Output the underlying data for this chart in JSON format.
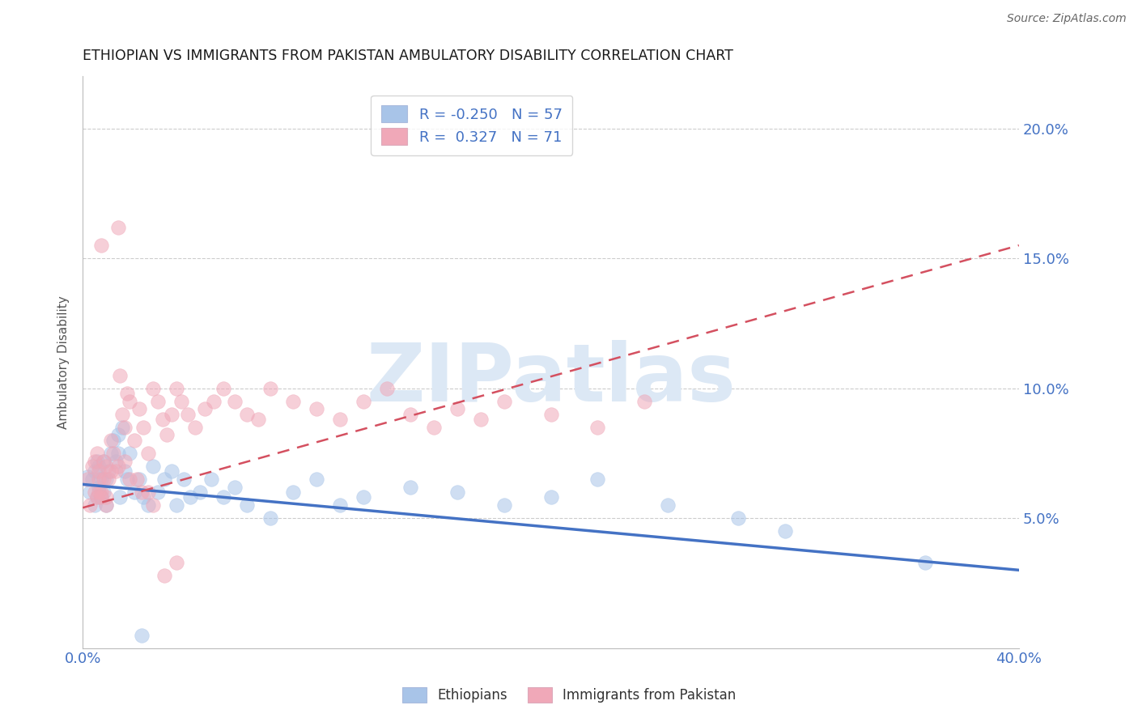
{
  "title": "ETHIOPIAN VS IMMIGRANTS FROM PAKISTAN AMBULATORY DISABILITY CORRELATION CHART",
  "source_text": "Source: ZipAtlas.com",
  "ylabel": "Ambulatory Disability",
  "xlim": [
    0.0,
    0.4
  ],
  "ylim": [
    0.0,
    0.22
  ],
  "xtick_positions": [
    0.0,
    0.05,
    0.1,
    0.15,
    0.2,
    0.25,
    0.3,
    0.35,
    0.4
  ],
  "xtick_labels": [
    "0.0%",
    "",
    "",
    "",
    "",
    "",
    "",
    "",
    "40.0%"
  ],
  "ytick_positions": [
    0.0,
    0.05,
    0.1,
    0.15,
    0.2
  ],
  "ytick_labels_right": [
    "",
    "5.0%",
    "10.0%",
    "15.0%",
    "20.0%"
  ],
  "blue_R": -0.25,
  "blue_N": 57,
  "pink_R": 0.327,
  "pink_N": 71,
  "blue_color": "#a8c4e8",
  "pink_color": "#f0a8b8",
  "blue_line_color": "#4472c4",
  "pink_line_color": "#d45060",
  "watermark": "ZIPatlas",
  "watermark_color": "#dce8f5",
  "title_color": "#1a1a1a",
  "axis_color": "#4472c4",
  "legend_label_blue": "Ethiopians",
  "legend_label_pink": "Immigrants from Pakistan",
  "blue_line_x0": 0.0,
  "blue_line_y0": 0.063,
  "blue_line_x1": 0.4,
  "blue_line_y1": 0.03,
  "pink_line_x0": 0.0,
  "pink_line_y0": 0.054,
  "pink_line_x1": 0.4,
  "pink_line_y1": 0.155,
  "blue_scatter_x": [
    0.002,
    0.003,
    0.004,
    0.005,
    0.005,
    0.006,
    0.006,
    0.007,
    0.007,
    0.008,
    0.008,
    0.009,
    0.009,
    0.01,
    0.01,
    0.011,
    0.012,
    0.013,
    0.014,
    0.015,
    0.016,
    0.017,
    0.018,
    0.019,
    0.02,
    0.022,
    0.024,
    0.026,
    0.028,
    0.03,
    0.032,
    0.035,
    0.038,
    0.04,
    0.043,
    0.046,
    0.05,
    0.055,
    0.06,
    0.065,
    0.07,
    0.08,
    0.09,
    0.1,
    0.11,
    0.12,
    0.14,
    0.16,
    0.18,
    0.2,
    0.22,
    0.25,
    0.28,
    0.015,
    0.3,
    0.36,
    0.025
  ],
  "blue_scatter_y": [
    0.066,
    0.06,
    0.065,
    0.055,
    0.068,
    0.058,
    0.072,
    0.062,
    0.07,
    0.065,
    0.058,
    0.072,
    0.06,
    0.065,
    0.055,
    0.068,
    0.075,
    0.08,
    0.072,
    0.082,
    0.058,
    0.085,
    0.068,
    0.065,
    0.075,
    0.06,
    0.065,
    0.058,
    0.055,
    0.07,
    0.06,
    0.065,
    0.068,
    0.055,
    0.065,
    0.058,
    0.06,
    0.065,
    0.058,
    0.062,
    0.055,
    0.05,
    0.06,
    0.065,
    0.055,
    0.058,
    0.062,
    0.06,
    0.055,
    0.058,
    0.065,
    0.055,
    0.05,
    0.075,
    0.045,
    0.033,
    0.005
  ],
  "pink_scatter_x": [
    0.002,
    0.003,
    0.004,
    0.005,
    0.005,
    0.006,
    0.006,
    0.007,
    0.007,
    0.008,
    0.008,
    0.009,
    0.009,
    0.01,
    0.01,
    0.011,
    0.012,
    0.013,
    0.014,
    0.015,
    0.016,
    0.017,
    0.018,
    0.019,
    0.02,
    0.022,
    0.024,
    0.026,
    0.028,
    0.03,
    0.032,
    0.034,
    0.036,
    0.038,
    0.04,
    0.042,
    0.045,
    0.048,
    0.052,
    0.056,
    0.06,
    0.065,
    0.07,
    0.075,
    0.08,
    0.09,
    0.1,
    0.11,
    0.12,
    0.13,
    0.14,
    0.15,
    0.16,
    0.17,
    0.18,
    0.2,
    0.22,
    0.24,
    0.007,
    0.01,
    0.015,
    0.02,
    0.025,
    0.03,
    0.008,
    0.012,
    0.018,
    0.023,
    0.028,
    0.035,
    0.04
  ],
  "pink_scatter_y": [
    0.065,
    0.055,
    0.07,
    0.06,
    0.072,
    0.058,
    0.075,
    0.065,
    0.068,
    0.06,
    0.155,
    0.065,
    0.072,
    0.07,
    0.058,
    0.065,
    0.08,
    0.075,
    0.068,
    0.162,
    0.105,
    0.09,
    0.085,
    0.098,
    0.095,
    0.08,
    0.092,
    0.085,
    0.075,
    0.1,
    0.095,
    0.088,
    0.082,
    0.09,
    0.1,
    0.095,
    0.09,
    0.085,
    0.092,
    0.095,
    0.1,
    0.095,
    0.09,
    0.088,
    0.1,
    0.095,
    0.092,
    0.088,
    0.095,
    0.1,
    0.09,
    0.085,
    0.092,
    0.088,
    0.095,
    0.09,
    0.085,
    0.095,
    0.06,
    0.055,
    0.07,
    0.065,
    0.06,
    0.055,
    0.058,
    0.068,
    0.072,
    0.065,
    0.06,
    0.028,
    0.033
  ]
}
